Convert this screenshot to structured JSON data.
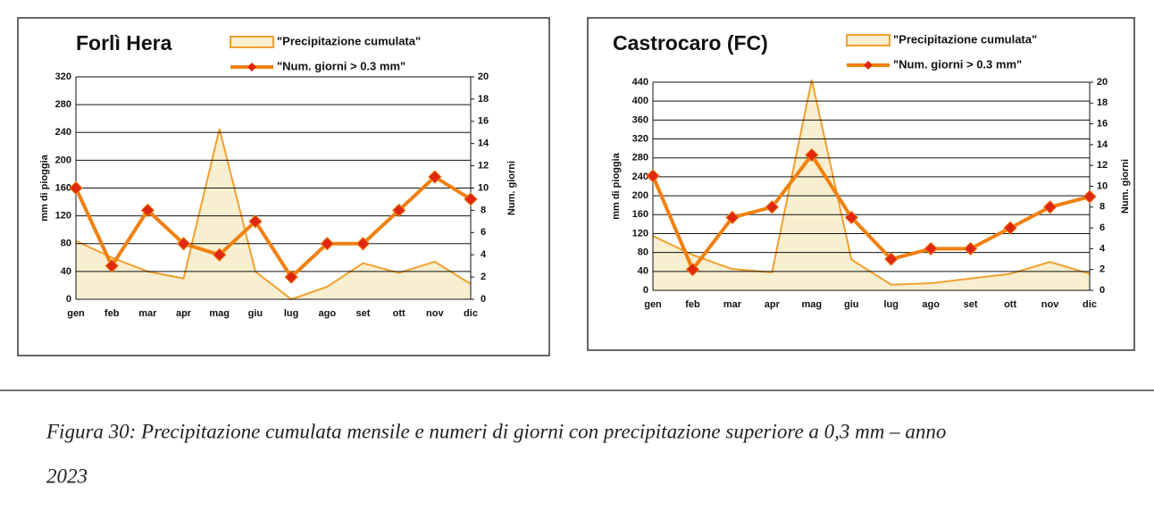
{
  "chart_data": [
    {
      "type": "combo",
      "title": "Forlì Hera",
      "categories": [
        "gen",
        "feb",
        "mar",
        "apr",
        "mag",
        "giu",
        "lug",
        "ago",
        "set",
        "ott",
        "nov",
        "dic"
      ],
      "series": [
        {
          "name": "\"Precipitazione cumulata\"",
          "type": "area",
          "color": "#f0a030",
          "fill": "#f7efcf",
          "values": [
            84,
            60,
            40,
            30,
            245,
            40,
            0,
            18,
            52,
            38,
            54,
            22
          ]
        },
        {
          "name": "\"Num. giorni > 0.3 mm\"",
          "type": "line",
          "axis": "y2",
          "color": "#f08010",
          "marker_color": "#e02810",
          "values": [
            10,
            3,
            8,
            5,
            4,
            7,
            2,
            5,
            5,
            8,
            11,
            9
          ]
        }
      ],
      "ylabel": "mm di pioggia",
      "y2label": "Num. giorni",
      "ylim": [
        0,
        320
      ],
      "yticks": [
        0,
        40,
        80,
        120,
        160,
        200,
        240,
        280,
        320
      ],
      "y2lim": [
        0,
        20
      ],
      "y2ticks": [
        0,
        2,
        4,
        6,
        8,
        10,
        12,
        14,
        16,
        18,
        20
      ],
      "grid": true
    },
    {
      "type": "combo",
      "title": "Castrocaro (FC)",
      "categories": [
        "gen",
        "feb",
        "mar",
        "apr",
        "mag",
        "giu",
        "lug",
        "ago",
        "set",
        "ott",
        "nov",
        "dic"
      ],
      "series": [
        {
          "name": "\"Precipitazione cumulata\"",
          "type": "area",
          "color": "#f0a030",
          "fill": "#f7efcf",
          "values": [
            115,
            75,
            45,
            38,
            445,
            65,
            12,
            15,
            25,
            35,
            60,
            35
          ]
        },
        {
          "name": "\"Num. giorni > 0.3 mm\"",
          "type": "line",
          "axis": "y2",
          "color": "#f08010",
          "marker_color": "#e02810",
          "values": [
            11,
            2,
            7,
            8,
            13,
            7,
            3,
            4,
            4,
            6,
            8,
            9
          ]
        }
      ],
      "ylabel": "mm di pioggia",
      "y2label": "Num. giorni",
      "ylim": [
        0,
        440
      ],
      "yticks": [
        0,
        40,
        80,
        120,
        160,
        200,
        240,
        280,
        320,
        360,
        400,
        440
      ],
      "y2lim": [
        0,
        20
      ],
      "y2ticks": [
        0,
        2,
        4,
        6,
        8,
        10,
        12,
        14,
        16,
        18,
        20
      ],
      "grid": true
    }
  ],
  "caption": {
    "line1": "Figura 30: Precipitazione cumulata mensile e numeri di giorni con precipitazione superiore a 0,3 mm – anno",
    "line2": "2023"
  }
}
